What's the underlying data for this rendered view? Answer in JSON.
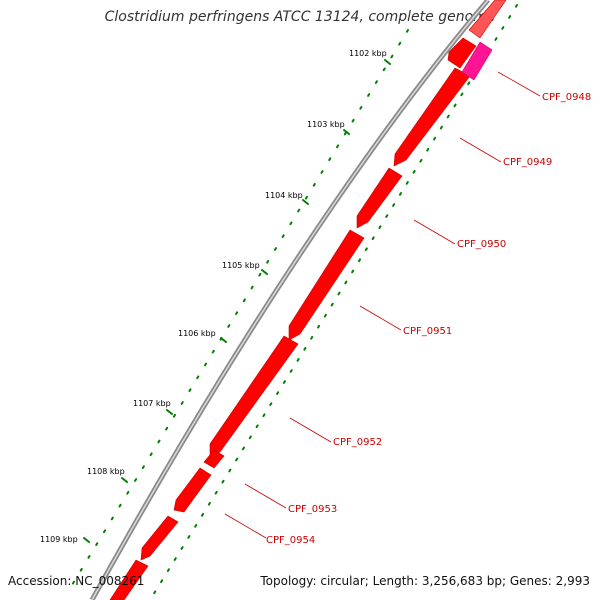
{
  "title": "Clostridium perfringens ATCC 13124, complete genome",
  "footer": {
    "accession": "Accession: NC_008261",
    "summary": "Topology: circular; Length: 3,256,683 bp; Genes: 2,993"
  },
  "ticks": [
    "1102 kbp",
    "1103 kbp",
    "1104 kbp",
    "1105 kbp",
    "1106 kbp",
    "1107 kbp",
    "1108 kbp",
    "1109 kbp"
  ],
  "genes": [
    "CPF_0948",
    "CPF_0949",
    "CPF_0950",
    "CPF_0951",
    "CPF_0952",
    "CPF_0953",
    "CPF_0954"
  ],
  "colors": {
    "backbone": "#808080",
    "forward_gene": "#ff0000",
    "highlight_gene": "#ff1493",
    "gc_dots": "#008000",
    "label": "#cc0000"
  }
}
